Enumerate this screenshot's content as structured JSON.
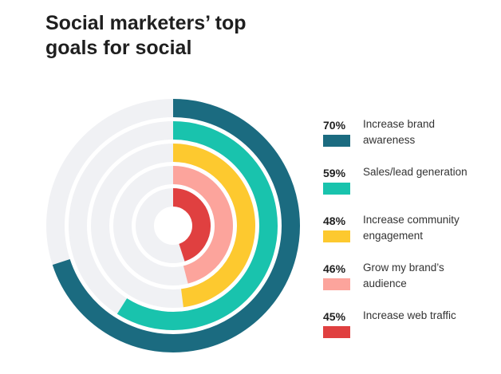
{
  "chart_data": {
    "type": "radial-bar",
    "title": "Social marketers’ top goals for social",
    "categories": [
      "Increase brand awareness",
      "Sales/lead generation",
      "Increase community engagement",
      "Grow my brand’s audience",
      "Increase web traffic"
    ],
    "values": [
      70,
      59,
      48,
      46,
      45
    ],
    "value_labels": [
      "70%",
      "59%",
      "48%",
      "46%",
      "45%"
    ],
    "colors": [
      "#1b6b80",
      "#19c3ad",
      "#fdc92f",
      "#fca49c",
      "#e04040"
    ],
    "ylim": [
      0,
      100
    ]
  }
}
